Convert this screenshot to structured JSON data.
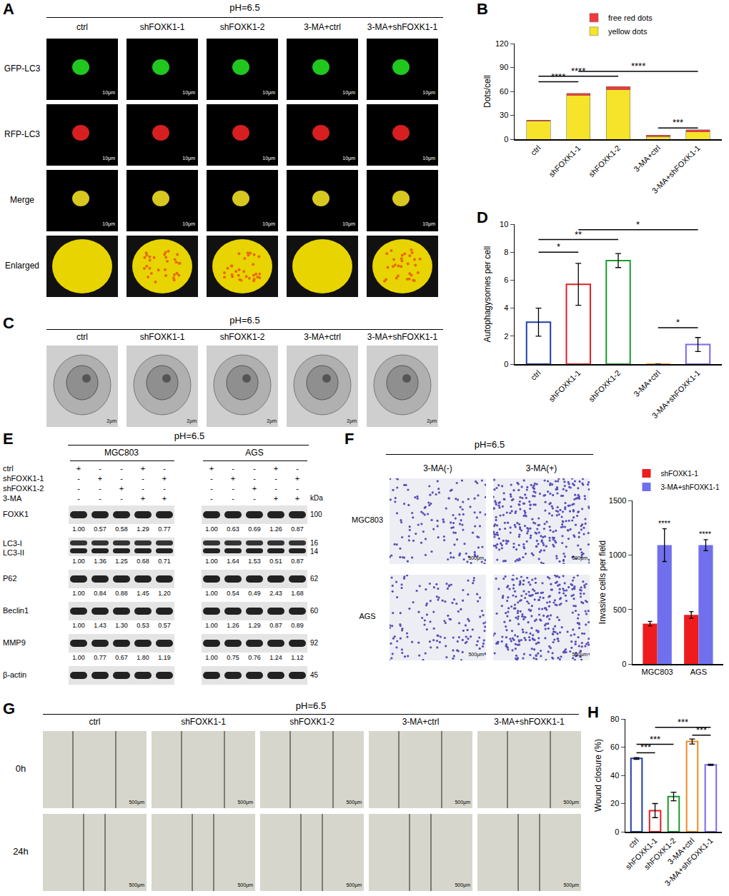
{
  "chart_data": [
    {
      "panel": "B",
      "type": "bar",
      "stacked": true,
      "grid": false,
      "legend": "top",
      "categories": [
        "ctrl",
        "shFOXK1-1",
        "shFOXK1-2",
        "3-MA+ctrl",
        "3-MA+shFOXK1-1"
      ],
      "series": [
        {
          "name": "yellow dots",
          "color": "#f5e42a",
          "values": [
            22.5,
            55,
            62,
            3.5,
            9
          ]
        },
        {
          "name": "free red dots",
          "color": "#f23a3a",
          "values": [
            1.5,
            2.5,
            4,
            1.5,
            3
          ]
        }
      ],
      "y_label": "Dots/cell",
      "ylim": [
        0,
        120
      ],
      "yticks": [
        0,
        30,
        60,
        90,
        120
      ],
      "comparisons": [
        {
          "from": "ctrl",
          "to": "shFOXK1-1",
          "y": 72,
          "label": "****"
        },
        {
          "from": "ctrl",
          "to": "shFOXK1-2",
          "y": 79,
          "label": "****"
        },
        {
          "from": "shFOXK1-1",
          "to": "3-MA+shFOXK1-1",
          "y": 85,
          "label": "****"
        },
        {
          "from": "3-MA+ctrl",
          "to": "3-MA+shFOXK1-1",
          "y": 14,
          "label": "***"
        }
      ]
    },
    {
      "panel": "D",
      "type": "bar",
      "grid": false,
      "categories": [
        "ctrl",
        "shFOXK1-1",
        "shFOXK1-2",
        "3-MA+ctrl",
        "3-MA+shFOXK1-1"
      ],
      "values": [
        3.0,
        5.7,
        7.4,
        0,
        1.4
      ],
      "errors": [
        1.0,
        1.5,
        0.5,
        0,
        0.5
      ],
      "colors": [
        "#1f3fa8",
        "#e02020",
        "#1a9a2a",
        "#f08a20",
        "#7b68ee"
      ],
      "y_label": "Autophagysomes per cell",
      "ylim": [
        0,
        10
      ],
      "yticks": [
        0,
        2,
        4,
        6,
        8,
        10
      ],
      "comparisons": [
        {
          "from": "ctrl",
          "to": "shFOXK1-1",
          "y": 8.0,
          "label": "*"
        },
        {
          "from": "ctrl",
          "to": "shFOXK1-2",
          "y": 8.9,
          "label": "**"
        },
        {
          "from": "shFOXK1-1",
          "to": "3-MA+shFOXK1-1",
          "y": 9.6,
          "label": "*"
        },
        {
          "from": "3-MA+ctrl",
          "to": "3-MA+shFOXK1-1",
          "y": 2.6,
          "label": "*"
        }
      ]
    },
    {
      "type": "bar",
      "grid": false,
      "legend": "top",
      "categories": [
        "MGC803",
        "AGS"
      ],
      "series": [
        {
          "name": "shFOXK1-1",
          "color": "#ee1c1c",
          "values": [
            370,
            450
          ],
          "errors": [
            20,
            30
          ]
        },
        {
          "name": "3-MA+shFOXK1-1",
          "color": "#7070ee",
          "values": [
            1090,
            1090
          ],
          "errors": [
            150,
            50
          ]
        }
      ],
      "y_label": "Invasive cells per field",
      "ylim": [
        0,
        1500
      ],
      "yticks": [
        0,
        500,
        1000,
        1500
      ],
      "marks": [
        {
          "category": "MGC803",
          "series": "3-MA+shFOXK1-1",
          "label": "****"
        },
        {
          "category": "AGS",
          "series": "3-MA+shFOXK1-1",
          "label": "****"
        }
      ]
    },
    {
      "panel": "H",
      "type": "bar",
      "grid": false,
      "categories": [
        "ctrl",
        "shFOXK1-1",
        "shFOXK1-2",
        "3-MA+ctrl",
        "3-MA+shFOXK1-1"
      ],
      "values": [
        52,
        15,
        25,
        64,
        47.5
      ],
      "errors": [
        0.6,
        5,
        3,
        1.8,
        0.4
      ],
      "colors": [
        "#1f3fa8",
        "#e02020",
        "#1a9a2a",
        "#f08a20",
        "#7b68ee"
      ],
      "y_label": "Wound closure (%)",
      "ylim": [
        0,
        80
      ],
      "yticks": [
        0,
        20,
        40,
        60,
        80
      ],
      "comparisons": [
        {
          "from": "ctrl",
          "to": "shFOXK1-1",
          "y": 56,
          "label": "***"
        },
        {
          "from": "ctrl",
          "to": "shFOXK1-2",
          "y": 62,
          "label": "***"
        },
        {
          "from": "3-MA+ctrl",
          "to": "3-MA+shFOXK1-1",
          "y": 68.5,
          "label": "***"
        },
        {
          "from": "shFOXK1-1",
          "to": "3-MA+shFOXK1-1",
          "y": 74,
          "label": "***"
        }
      ]
    }
  ],
  "panels": {
    "A": {
      "letter": "A",
      "title": "pH=6.5",
      "columns": [
        "ctrl",
        "shFOXK1-1",
        "shFOXK1-2",
        "3-MA+ctrl",
        "3-MA+shFOXK1-1"
      ],
      "rows": [
        "GFP-LC3",
        "RFP-LC3",
        "Merge",
        "Enlarged"
      ],
      "scale_bar": "10μm"
    },
    "C": {
      "letter": "C",
      "title": "pH=6.5",
      "columns": [
        "ctrl",
        "shFOXK1-1",
        "shFOXK1-2",
        "3-MA+ctrl",
        "3-MA+shFOXK1-1"
      ],
      "scale_bar": "2μm"
    },
    "E": {
      "letter": "E",
      "title": "pH=6.5",
      "cell_lines": [
        "MGC803",
        "AGS"
      ],
      "conditions": [
        {
          "name": "ctrl",
          "lanes": [
            "+",
            "-",
            "-",
            "+",
            "-"
          ]
        },
        {
          "name": "shFOXK1-1",
          "lanes": [
            "-",
            "+",
            "-",
            "-",
            "+"
          ]
        },
        {
          "name": "shFOXK1-2",
          "lanes": [
            "-",
            "-",
            "+",
            "-",
            "-"
          ]
        },
        {
          "name": "3-MA",
          "lanes": [
            "-",
            "-",
            "-",
            "+",
            "+"
          ]
        }
      ],
      "unit": "kDa",
      "proteins": [
        {
          "names": [
            "FOXK1"
          ],
          "kda": [
            "100"
          ],
          "values": {
            "MGC803": [
              "1.00",
              "0.57",
              "0.58",
              "1.29",
              "0.77"
            ],
            "AGS": [
              "1.00",
              "0.63",
              "0.69",
              "1.26",
              "0.87"
            ]
          }
        },
        {
          "names": [
            "LC3-I",
            "LC3-II"
          ],
          "kda": [
            "16",
            "14"
          ],
          "values": {
            "MGC803": [
              "1.00",
              "1.36",
              "1.25",
              "0.68",
              "0.71"
            ],
            "AGS": [
              "1.00",
              "1.64",
              "1.53",
              "0.51",
              "0.87"
            ]
          }
        },
        {
          "names": [
            "P62"
          ],
          "kda": [
            "62"
          ],
          "values": {
            "MGC803": [
              "1.00",
              "0.84",
              "0.88",
              "1.45",
              "1.20"
            ],
            "AGS": [
              "1.00",
              "0.54",
              "0.49",
              "2.43",
              "1.68"
            ]
          }
        },
        {
          "names": [
            "Beclin1"
          ],
          "kda": [
            "60"
          ],
          "values": {
            "MGC803": [
              "1.00",
              "1.43",
              "1.30",
              "0.53",
              "0.57"
            ],
            "AGS": [
              "1.00",
              "1.26",
              "1.29",
              "0.87",
              "0.89"
            ]
          }
        },
        {
          "names": [
            "MMP9"
          ],
          "kda": [
            "92"
          ],
          "values": {
            "MGC803": [
              "1.00",
              "0.77",
              "0.67",
              "1.80",
              "1.19"
            ],
            "AGS": [
              "1.00",
              "0.75",
              "0.76",
              "1.24",
              "1.12"
            ]
          }
        },
        {
          "names": [
            "β-actin"
          ],
          "kda": [
            "45"
          ]
        }
      ]
    },
    "F": {
      "letter": "F",
      "title": "pH=6.5",
      "columns": [
        "3-MA(-)",
        "3-MA(+)"
      ],
      "rows": [
        "MGC803",
        "AGS"
      ],
      "scale_bar": "500μm"
    },
    "G": {
      "letter": "G",
      "title": "pH=6.5",
      "columns": [
        "ctrl",
        "shFOXK1-1",
        "shFOXK1-2",
        "3-MA+ctrl",
        "3-MA+shFOXK1-1"
      ],
      "rows": [
        "0h",
        "24h"
      ],
      "scale_bar": "500μm"
    }
  }
}
